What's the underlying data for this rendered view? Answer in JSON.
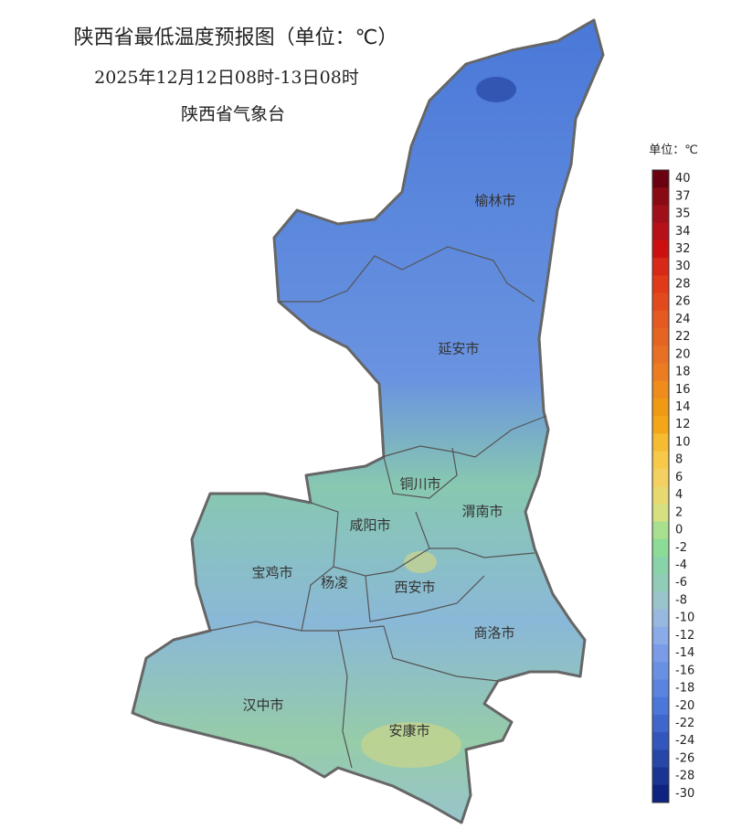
{
  "header": {
    "title": "陕西省最低温度预报图（单位：℃）",
    "subtitle": "2025年12月12日08时-13日08时",
    "issuer": "陕西省气象台"
  },
  "cities": [
    "榆林市",
    "延安市",
    "铜川市",
    "渭南市",
    "咸阳市",
    "宝鸡市",
    "杨凌",
    "西安市",
    "商洛市",
    "汉中市",
    "安康市"
  ],
  "legend": {
    "unit": "单位：℃",
    "ticks": [
      40,
      37,
      35,
      34,
      32,
      30,
      28,
      26,
      24,
      22,
      20,
      18,
      16,
      14,
      12,
      10,
      8,
      6,
      4,
      2,
      0,
      -2,
      -4,
      -6,
      -8,
      -10,
      -12,
      -14,
      -16,
      -18,
      -20,
      -22,
      -24,
      -26,
      -28,
      -30
    ],
    "colors": [
      "#6b0010",
      "#8a0a14",
      "#a0101a",
      "#b81018",
      "#cc1010",
      "#d82818",
      "#e03a18",
      "#e24a1e",
      "#e45a20",
      "#e66422",
      "#e87024",
      "#ec7c22",
      "#ef8c1c",
      "#f09a14",
      "#f3a618",
      "#f6bb30",
      "#f8c848",
      "#f3d060",
      "#e8d870",
      "#d6e080",
      "#a8e090",
      "#8cdc98",
      "#88d4a8",
      "#90ccb8",
      "#98c4cc",
      "#98b8e0",
      "#8aaae8",
      "#7a9ce8",
      "#6a90e4",
      "#5a84e0",
      "#4c76d8",
      "#3e66cc",
      "#3256bc",
      "#2646a8",
      "#1a3494",
      "#0e2280"
    ]
  }
}
